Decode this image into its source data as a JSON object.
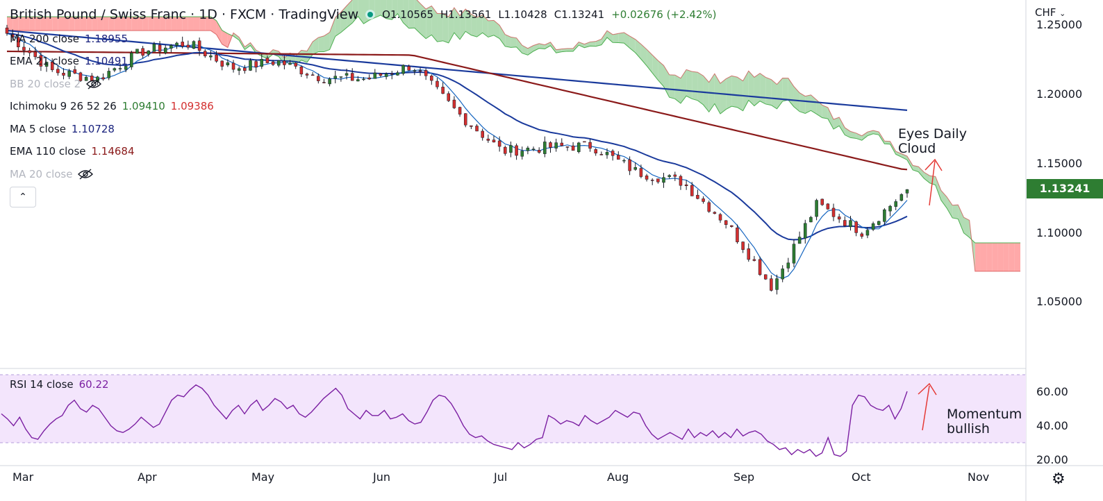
{
  "header": {
    "title": "British Pound / Swiss Franc · 1D · FXCM · TradingView",
    "open": "O1.10565",
    "high": "H1.13561",
    "low": "L1.10428",
    "close": "C1.13241",
    "change": "+0.02676 (+2.42%)"
  },
  "indicators": [
    {
      "label": "MA 200 close",
      "values": [
        "1.18955"
      ],
      "colors": [
        "#1a237e"
      ]
    },
    {
      "label": "EMA 21 close",
      "values": [
        "1.10491"
      ],
      "colors": [
        "#1a237e"
      ]
    },
    {
      "label": "BB 20 close 2",
      "values": [],
      "hidden": true
    },
    {
      "label": "Ichimoku 9 26 52 26",
      "values": [
        "1.09410",
        "1.09386"
      ],
      "colors": [
        "#2e7d32",
        "#d32f2f"
      ]
    },
    {
      "label": "MA 5 close",
      "values": [
        "1.10728"
      ],
      "colors": [
        "#1a237e"
      ]
    },
    {
      "label": "EMA 110 close",
      "values": [
        "1.14684"
      ],
      "colors": [
        "#8b1a1a"
      ]
    },
    {
      "label": "MA 20 close",
      "values": [],
      "hidden": true,
      "muted": true
    }
  ],
  "rsi_label": {
    "label": "RSI 14 close",
    "value": "60.22"
  },
  "currency_label": "CHF",
  "last_price": "1.13241",
  "annotations": {
    "cloud_line1": "Eyes Daily",
    "cloud_line2": "Cloud",
    "momentum_line1": "Momentum",
    "momentum_line2": "bullish"
  },
  "colors": {
    "up": "#2e7d32",
    "down": "#d32f2f",
    "ma200": "#1a3a9c",
    "ema110": "#8b1a1a",
    "ema21": "#1a3a9c",
    "cloud_bear": "#ff9a9a",
    "cloud_bull": "#a5d6a7",
    "rsi": "#7b1fa2",
    "rsi_bg": "#f3e5fc",
    "arrow": "#e53935"
  },
  "chart_data": [
    {
      "type": "candlestick",
      "title": "British Pound / Swiss Franc · 1D · FXCM",
      "x_tick_labels": [
        "Mar",
        "Apr",
        "May",
        "Jun",
        "Jul",
        "Aug",
        "Sep",
        "Oct",
        "Nov"
      ],
      "y_tick_labels": [
        "1.25000",
        "1.20000",
        "1.15000",
        "1.10000",
        "1.05000"
      ],
      "ylim": [
        1.0,
        1.25
      ],
      "grid": false,
      "close_series": [
        {
          "date": "Mar 1",
          "close": 1.245
        },
        {
          "date": "Mar 15",
          "close": 1.218
        },
        {
          "date": "Apr 1",
          "close": 1.212
        },
        {
          "date": "Apr 15",
          "close": 1.232
        },
        {
          "date": "Apr 22",
          "close": 1.238
        },
        {
          "date": "May 1",
          "close": 1.22
        },
        {
          "date": "May 15",
          "close": 1.225
        },
        {
          "date": "May 22",
          "close": 1.213
        },
        {
          "date": "Jun 1",
          "close": 1.212
        },
        {
          "date": "Jun 10",
          "close": 1.222
        },
        {
          "date": "Jun 20",
          "close": 1.188
        },
        {
          "date": "Jul 1",
          "close": 1.16
        },
        {
          "date": "Jul 15",
          "close": 1.163
        },
        {
          "date": "Aug 1",
          "close": 1.164
        },
        {
          "date": "Aug 15",
          "close": 1.145
        },
        {
          "date": "Sep 1",
          "close": 1.138
        },
        {
          "date": "Sep 15",
          "close": 1.108
        },
        {
          "date": "Sep 26",
          "close": 1.062
        },
        {
          "date": "Oct 3",
          "close": 1.122
        },
        {
          "date": "Oct 10",
          "close": 1.102
        },
        {
          "date": "Oct 13",
          "close": 1.13241
        }
      ],
      "series": [
        {
          "name": "MA 200 close",
          "last": 1.18955
        },
        {
          "name": "EMA 110 close",
          "last": 1.14684
        },
        {
          "name": "EMA 21 close",
          "last": 1.10491
        },
        {
          "name": "MA 5 close",
          "last": 1.10728
        },
        {
          "name": "Ichimoku 9 26 52 26",
          "last": [
            1.0941,
            1.09386
          ]
        }
      ]
    },
    {
      "type": "line",
      "title": "RSI 14 close",
      "y_tick_labels": [
        "60.00",
        "40.00",
        "20.00"
      ],
      "ylim": [
        20,
        70
      ],
      "bands": [
        30,
        70
      ],
      "values": [
        47,
        44,
        40,
        45,
        38,
        33,
        32,
        37,
        41,
        44,
        46,
        52,
        55,
        50,
        48,
        52,
        50,
        45,
        40,
        37,
        36,
        38,
        41,
        45,
        42,
        39,
        41,
        48,
        55,
        58,
        57,
        61,
        64,
        62,
        58,
        52,
        48,
        44,
        49,
        52,
        47,
        52,
        55,
        49,
        52,
        56,
        54,
        50,
        52,
        47,
        45,
        48,
        52,
        56,
        59,
        62,
        58,
        50,
        47,
        44,
        49,
        46,
        46,
        49,
        44,
        45,
        47,
        43,
        41,
        42,
        48,
        55,
        58,
        57,
        53,
        47,
        40,
        35,
        33,
        34,
        31,
        29,
        28,
        27,
        26,
        30,
        27,
        29,
        32,
        33,
        46,
        44,
        41,
        43,
        42,
        40,
        46,
        43,
        41,
        43,
        45,
        49,
        47,
        45,
        48,
        47,
        40,
        35,
        32,
        34,
        36,
        34,
        32,
        38,
        33,
        36,
        34,
        37,
        33,
        36,
        33,
        38,
        34,
        36,
        37,
        35,
        31,
        29,
        26,
        27,
        23,
        26,
        24,
        26,
        22,
        24,
        33,
        23,
        22,
        25,
        52,
        58,
        57,
        52,
        50,
        49,
        52,
        44,
        50,
        60.22
      ],
      "last": 60.22
    }
  ]
}
